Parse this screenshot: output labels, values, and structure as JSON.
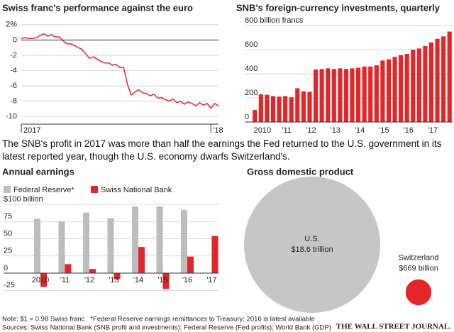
{
  "chart_data": [
    {
      "type": "line",
      "title": "Swiss franc's performance against the euro",
      "x": [
        2017.0,
        2017.02,
        2017.04,
        2017.06,
        2017.08,
        2017.1,
        2017.12,
        2017.14,
        2017.16,
        2017.18,
        2017.2,
        2017.22,
        2017.24,
        2017.26,
        2017.28,
        2017.3,
        2017.32,
        2017.34,
        2017.36,
        2017.38,
        2017.4,
        2017.42,
        2017.44,
        2017.46,
        2017.48,
        2017.5,
        2017.52,
        2017.54,
        2017.56,
        2017.58,
        2017.6,
        2017.62,
        2017.64,
        2017.66,
        2017.68,
        2017.7,
        2017.72,
        2017.74,
        2017.76,
        2017.78,
        2017.8,
        2017.82,
        2017.84,
        2017.86,
        2017.88,
        2017.9,
        2017.92,
        2017.94,
        2017.96,
        2017.98,
        2018.0,
        2018.02,
        2018.04
      ],
      "values": [
        0.2,
        0.3,
        0.2,
        0.2,
        0.3,
        0.6,
        0.8,
        0.5,
        0.7,
        0.4,
        0.4,
        -0.1,
        -0.5,
        -0.5,
        -0.7,
        -1.0,
        -1.2,
        -1.8,
        -2.4,
        -2.2,
        -2.5,
        -2.8,
        -3.0,
        -3.0,
        -3.3,
        -3.2,
        -3.6,
        -3.6,
        -5.8,
        -7.2,
        -6.8,
        -6.5,
        -6.9,
        -7.0,
        -7.3,
        -7.1,
        -7.6,
        -7.5,
        -7.8,
        -8.0,
        -7.7,
        -8.2,
        -8.0,
        -8.4,
        -8.1,
        -8.3,
        -8.6,
        -8.2,
        -8.5,
        -8.3,
        -8.9,
        -8.3,
        -8.6
      ],
      "color": "#e3262a",
      "xlim": [
        2017,
        2018.04
      ],
      "xticks": [
        2017,
        {
          "value": 2018,
          "label": "'18"
        }
      ],
      "ylim": [
        -11,
        3
      ],
      "yticks": [
        {
          "value": 2,
          "label": "2%"
        },
        0,
        -2,
        -4,
        -6,
        -8,
        -10
      ],
      "grid": true
    },
    {
      "type": "bar",
      "title": "SNB's foreign-currency investments, quarterly",
      "categories": [
        null,
        "2010",
        null,
        null,
        null,
        "'11",
        null,
        null,
        null,
        "'12",
        null,
        null,
        null,
        "'13",
        null,
        null,
        null,
        "'14",
        null,
        null,
        null,
        "'15",
        null,
        null,
        null,
        "'16",
        null,
        null,
        null,
        "'17",
        null,
        null,
        null
      ],
      "values": [
        100,
        230,
        225,
        215,
        210,
        215,
        205,
        280,
        255,
        250,
        435,
        440,
        445,
        440,
        445,
        440,
        445,
        450,
        460,
        460,
        470,
        510,
        520,
        540,
        555,
        565,
        600,
        610,
        630,
        660,
        690,
        710,
        750
      ],
      "color": "#e3262a",
      "ylim": [
        0,
        800
      ],
      "yticks": [
        0,
        200,
        400,
        600,
        {
          "value": 800,
          "label": "800 billion francs"
        }
      ],
      "grid": true
    },
    {
      "type": "bar",
      "title": "Annual earnings",
      "categories": [
        "2010",
        "'11",
        "'12",
        "'13",
        "'14",
        "'15",
        "'16",
        "'17"
      ],
      "series": [
        {
          "name": "Federal Reserve*",
          "color": "#bdbdbd",
          "values": [
            79,
            75,
            88,
            80,
            97,
            97,
            92,
            null
          ]
        },
        {
          "name": "Swiss National Bank",
          "color": "#e3262a",
          "values": [
            -20,
            13,
            6,
            -9,
            38,
            -23,
            24,
            54
          ]
        }
      ],
      "ylim": [
        -33,
        100
      ],
      "yticks": [
        -25,
        0,
        25,
        50,
        75,
        {
          "value": 100,
          "label": "$100 billion"
        }
      ],
      "grid": true,
      "legend": "top-left"
    },
    {
      "type": "bubble",
      "title": "Gross domestic product",
      "categories": [
        "U.S.",
        "Switzerland"
      ],
      "values": [
        18600,
        669
      ],
      "value_labels": [
        "$18.6 trillion",
        "$669 billion"
      ],
      "colors": [
        "#c6c6c6",
        "#e3262a"
      ]
    }
  ],
  "caption": "The SNB's profit in 2017 was more than half the earnings the Fed returned to the U.S. government in its latest reported year, though the U.S. economy dwarfs Switzerland's.",
  "note": "Note: $1 = 0.98 Swiss franc   *Federal Reserve earnings remittances to Treasury; 2016 is latest available",
  "source": "Sources: Swiss National Bank (SNB profit and investments); Federal Reserve (Fed profits); World Bank (GDP)",
  "logo": "THE WALL STREET JOURNAL."
}
